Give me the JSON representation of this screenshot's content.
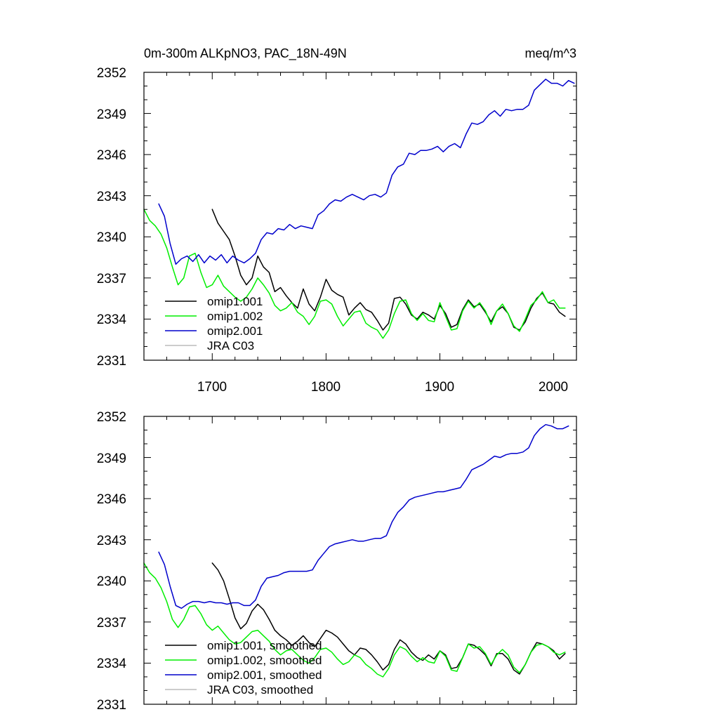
{
  "chart_data": [
    {
      "type": "line",
      "title": "0m-300m ALKpNO3, PAC_18N-49N",
      "units": "meq/m^3",
      "xlim": [
        1640,
        2020
      ],
      "ylim": [
        2331,
        2352
      ],
      "yticks": [
        "2331",
        "2334",
        "2337",
        "2340",
        "2343",
        "2346",
        "2349",
        "2352"
      ],
      "xticks": [
        "1700",
        "1800",
        "1900",
        "2000"
      ],
      "legend_position": "lower-left",
      "series": [
        {
          "name": "omip1.001",
          "color": "#000000",
          "x": [
            1700,
            1705,
            1710,
            1715,
            1720,
            1725,
            1730,
            1735,
            1740,
            1745,
            1750,
            1755,
            1760,
            1765,
            1770,
            1775,
            1780,
            1785,
            1790,
            1795,
            1800,
            1805,
            1810,
            1815,
            1820,
            1825,
            1830,
            1835,
            1840,
            1845,
            1850,
            1855,
            1860,
            1865,
            1870,
            1875,
            1880,
            1885,
            1890,
            1895,
            1900,
            1905,
            1910,
            1915,
            1920,
            1925,
            1930,
            1935,
            1940,
            1945,
            1950,
            1955,
            1960,
            1965,
            1970,
            1975,
            1980,
            1985,
            1990,
            1995,
            2000,
            2005,
            2010
          ],
          "y": [
            2342.0,
            2341.0,
            2340.4,
            2339.8,
            2338.6,
            2337.2,
            2336.5,
            2337.0,
            2338.6,
            2337.8,
            2337.4,
            2336.0,
            2336.3,
            2335.7,
            2335.2,
            2334.8,
            2336.2,
            2335.1,
            2334.6,
            2335.6,
            2336.9,
            2336.1,
            2335.8,
            2335.6,
            2334.3,
            2334.8,
            2335.2,
            2334.7,
            2334.5,
            2333.9,
            2333.2,
            2333.7,
            2335.5,
            2335.6,
            2335.1,
            2334.3,
            2334.0,
            2334.5,
            2334.3,
            2334.0,
            2335.0,
            2334.4,
            2333.4,
            2333.6,
            2334.7,
            2335.4,
            2334.9,
            2335.1,
            2334.5,
            2333.8,
            2334.6,
            2334.9,
            2334.4,
            2333.4,
            2333.2,
            2333.8,
            2334.8,
            2335.5,
            2335.9,
            2335.2,
            2335.1,
            2334.5,
            2334.2
          ]
        },
        {
          "name": "omip1.002",
          "color": "#00ee00",
          "x": [
            1640,
            1645,
            1650,
            1655,
            1660,
            1665,
            1670,
            1675,
            1680,
            1685,
            1690,
            1695,
            1700,
            1705,
            1710,
            1715,
            1720,
            1725,
            1730,
            1735,
            1740,
            1745,
            1750,
            1755,
            1760,
            1765,
            1770,
            1775,
            1780,
            1785,
            1790,
            1795,
            1800,
            1805,
            1810,
            1815,
            1820,
            1825,
            1830,
            1835,
            1840,
            1845,
            1850,
            1855,
            1860,
            1865,
            1870,
            1875,
            1880,
            1885,
            1890,
            1895,
            1900,
            1905,
            1910,
            1915,
            1920,
            1925,
            1930,
            1935,
            1940,
            1945,
            1950,
            1955,
            1960,
            1965,
            1970,
            1975,
            1980,
            1985,
            1990,
            1995,
            2000,
            2005,
            2010
          ],
          "y": [
            2342.0,
            2341.2,
            2340.8,
            2340.2,
            2339.2,
            2337.8,
            2336.5,
            2337.0,
            2338.6,
            2338.8,
            2337.4,
            2336.3,
            2336.5,
            2337.2,
            2336.4,
            2336.0,
            2335.6,
            2335.3,
            2335.6,
            2336.2,
            2337.0,
            2336.5,
            2335.9,
            2335.0,
            2334.6,
            2334.8,
            2335.2,
            2334.5,
            2334.2,
            2333.6,
            2334.2,
            2335.3,
            2335.4,
            2335.1,
            2334.2,
            2333.5,
            2334.0,
            2334.5,
            2334.6,
            2333.7,
            2333.4,
            2333.2,
            2332.6,
            2333.2,
            2334.4,
            2335.3,
            2335.4,
            2334.4,
            2333.9,
            2334.4,
            2333.9,
            2333.8,
            2335.2,
            2334.2,
            2333.2,
            2333.3,
            2334.6,
            2335.3,
            2334.8,
            2335.2,
            2334.6,
            2333.6,
            2334.6,
            2335.1,
            2334.4,
            2333.5,
            2333.1,
            2334.0,
            2335.0,
            2335.4,
            2336.0,
            2335.2,
            2335.4,
            2334.8,
            2334.8
          ]
        },
        {
          "name": "omip2.001",
          "color": "#0000cc",
          "x": [
            1653,
            1658,
            1663,
            1668,
            1673,
            1678,
            1683,
            1688,
            1693,
            1698,
            1703,
            1708,
            1713,
            1718,
            1723,
            1728,
            1733,
            1738,
            1743,
            1748,
            1753,
            1758,
            1763,
            1768,
            1773,
            1778,
            1783,
            1788,
            1793,
            1798,
            1803,
            1808,
            1813,
            1818,
            1823,
            1828,
            1833,
            1838,
            1843,
            1848,
            1853,
            1858,
            1863,
            1868,
            1873,
            1878,
            1883,
            1888,
            1893,
            1898,
            1903,
            1908,
            1913,
            1918,
            1923,
            1928,
            1933,
            1938,
            1943,
            1948,
            1953,
            1958,
            1963,
            1968,
            1973,
            1978,
            1983,
            1988,
            1993,
            1998,
            2003,
            2008,
            2013,
            2018
          ],
          "y": [
            2342.4,
            2341.5,
            2339.5,
            2338.0,
            2338.4,
            2338.6,
            2338.2,
            2338.7,
            2338.1,
            2338.6,
            2338.3,
            2338.7,
            2338.1,
            2338.6,
            2338.3,
            2338.1,
            2338.4,
            2338.8,
            2339.8,
            2340.3,
            2340.2,
            2340.6,
            2340.5,
            2340.9,
            2340.6,
            2340.8,
            2340.7,
            2340.6,
            2341.6,
            2341.9,
            2342.4,
            2342.7,
            2342.6,
            2342.9,
            2343.1,
            2342.9,
            2342.7,
            2343.0,
            2343.1,
            2342.9,
            2343.2,
            2344.5,
            2345.1,
            2345.3,
            2346.1,
            2346.0,
            2346.3,
            2346.3,
            2346.4,
            2346.6,
            2346.2,
            2346.6,
            2346.8,
            2346.5,
            2347.5,
            2348.3,
            2348.2,
            2348.4,
            2348.9,
            2349.2,
            2348.8,
            2349.3,
            2349.2,
            2349.3,
            2349.3,
            2349.6,
            2350.7,
            2351.1,
            2351.5,
            2351.2,
            2351.2,
            2351.0,
            2351.4,
            2351.2
          ]
        },
        {
          "name": "JRA C03",
          "color": "#bbbbbb",
          "x": [],
          "y": []
        }
      ]
    },
    {
      "type": "line",
      "title": "",
      "units": "",
      "xlim": [
        1640,
        2020
      ],
      "ylim": [
        2331,
        2352
      ],
      "yticks": [
        "2331",
        "2334",
        "2337",
        "2340",
        "2343",
        "2346",
        "2349",
        "2352"
      ],
      "xticks": [],
      "legend_position": "lower-left",
      "series": [
        {
          "name": "omip1.001, smoothed",
          "color": "#000000",
          "x": [
            1700,
            1705,
            1710,
            1715,
            1720,
            1725,
            1730,
            1735,
            1740,
            1745,
            1750,
            1755,
            1760,
            1765,
            1770,
            1775,
            1780,
            1785,
            1790,
            1795,
            1800,
            1805,
            1810,
            1815,
            1820,
            1825,
            1830,
            1835,
            1840,
            1845,
            1850,
            1855,
            1860,
            1865,
            1870,
            1875,
            1880,
            1885,
            1890,
            1895,
            1900,
            1905,
            1910,
            1915,
            1920,
            1925,
            1930,
            1935,
            1940,
            1945,
            1950,
            1955,
            1960,
            1965,
            1970,
            1975,
            1980,
            1985,
            1990,
            1995,
            2000,
            2005,
            2010
          ],
          "y": [
            2341.3,
            2340.8,
            2340.0,
            2338.7,
            2337.3,
            2336.5,
            2336.9,
            2337.8,
            2338.3,
            2337.9,
            2337.2,
            2336.4,
            2336.0,
            2335.7,
            2335.3,
            2335.6,
            2336.0,
            2335.5,
            2335.2,
            2335.8,
            2336.4,
            2336.2,
            2335.9,
            2335.4,
            2334.9,
            2334.6,
            2335.1,
            2335.0,
            2334.6,
            2334.1,
            2333.5,
            2333.9,
            2335.0,
            2335.7,
            2335.4,
            2334.8,
            2334.4,
            2334.2,
            2334.6,
            2334.3,
            2334.9,
            2334.6,
            2333.6,
            2333.7,
            2334.4,
            2335.4,
            2335.3,
            2335.0,
            2334.6,
            2333.8,
            2334.7,
            2334.7,
            2334.3,
            2333.5,
            2333.2,
            2333.9,
            2334.8,
            2335.5,
            2335.4,
            2335.2,
            2334.9,
            2334.3,
            2334.7
          ]
        },
        {
          "name": "omip1.002, smoothed",
          "color": "#00ee00",
          "x": [
            1640,
            1645,
            1650,
            1655,
            1660,
            1665,
            1670,
            1675,
            1680,
            1685,
            1690,
            1695,
            1700,
            1705,
            1710,
            1715,
            1720,
            1725,
            1730,
            1735,
            1740,
            1745,
            1750,
            1755,
            1760,
            1765,
            1770,
            1775,
            1780,
            1785,
            1790,
            1795,
            1800,
            1805,
            1810,
            1815,
            1820,
            1825,
            1830,
            1835,
            1840,
            1845,
            1850,
            1855,
            1860,
            1865,
            1870,
            1875,
            1880,
            1885,
            1890,
            1895,
            1900,
            1905,
            1910,
            1915,
            1920,
            1925,
            1930,
            1935,
            1940,
            1945,
            1950,
            1955,
            1960,
            1965,
            1970,
            1975,
            1980,
            1985,
            1990,
            1995,
            2000,
            2005,
            2010
          ],
          "y": [
            2341.3,
            2340.6,
            2340.2,
            2339.5,
            2338.5,
            2337.2,
            2336.6,
            2337.2,
            2338.1,
            2338.2,
            2337.6,
            2336.8,
            2336.4,
            2336.7,
            2336.2,
            2335.7,
            2335.4,
            2335.5,
            2335.9,
            2336.3,
            2336.4,
            2336.0,
            2335.6,
            2335.0,
            2334.6,
            2334.9,
            2335.0,
            2334.6,
            2334.2,
            2334.0,
            2334.4,
            2335.0,
            2335.1,
            2334.8,
            2334.3,
            2333.9,
            2334.1,
            2334.6,
            2334.4,
            2333.9,
            2333.6,
            2333.2,
            2333.0,
            2333.6,
            2334.6,
            2335.2,
            2335.0,
            2334.5,
            2334.1,
            2334.4,
            2334.1,
            2334.0,
            2334.9,
            2334.5,
            2333.5,
            2333.4,
            2334.4,
            2335.4,
            2335.1,
            2335.2,
            2334.7,
            2333.9,
            2334.6,
            2335.0,
            2334.6,
            2333.7,
            2333.3,
            2333.9,
            2334.8,
            2335.3,
            2335.4,
            2335.2,
            2334.8,
            2334.6,
            2334.8
          ]
        },
        {
          "name": "omip2.001, smoothed",
          "color": "#0000cc",
          "x": [
            1653,
            1658,
            1663,
            1668,
            1673,
            1678,
            1683,
            1688,
            1693,
            1698,
            1703,
            1708,
            1713,
            1718,
            1723,
            1728,
            1733,
            1738,
            1743,
            1748,
            1753,
            1758,
            1763,
            1768,
            1773,
            1778,
            1783,
            1788,
            1793,
            1798,
            1803,
            1808,
            1813,
            1818,
            1823,
            1828,
            1833,
            1838,
            1843,
            1848,
            1853,
            1858,
            1863,
            1868,
            1873,
            1878,
            1883,
            1888,
            1893,
            1898,
            1903,
            1908,
            1913,
            1918,
            1923,
            1928,
            1933,
            1938,
            1943,
            1948,
            1953,
            1958,
            1963,
            1968,
            1973,
            1978,
            1983,
            1988,
            1993,
            1998,
            2003,
            2008,
            2013
          ],
          "y": [
            2342.1,
            2341.2,
            2339.6,
            2338.2,
            2338.0,
            2338.3,
            2338.5,
            2338.5,
            2338.4,
            2338.5,
            2338.4,
            2338.4,
            2338.3,
            2338.4,
            2338.4,
            2338.2,
            2338.2,
            2338.6,
            2339.6,
            2340.2,
            2340.3,
            2340.4,
            2340.6,
            2340.7,
            2340.7,
            2340.7,
            2340.7,
            2340.8,
            2341.5,
            2342.0,
            2342.5,
            2342.7,
            2342.8,
            2342.9,
            2343.0,
            2342.9,
            2342.9,
            2343.0,
            2343.1,
            2343.1,
            2343.3,
            2344.3,
            2345.0,
            2345.4,
            2345.9,
            2346.1,
            2346.2,
            2346.3,
            2346.4,
            2346.5,
            2346.5,
            2346.6,
            2346.7,
            2346.8,
            2347.4,
            2348.1,
            2348.3,
            2348.5,
            2348.8,
            2349.1,
            2349.0,
            2349.2,
            2349.3,
            2349.3,
            2349.4,
            2349.7,
            2350.6,
            2351.1,
            2351.4,
            2351.3,
            2351.1,
            2351.1,
            2351.3
          ]
        },
        {
          "name": "JRA C03, smoothed",
          "color": "#bbbbbb",
          "x": [],
          "y": []
        }
      ]
    }
  ]
}
